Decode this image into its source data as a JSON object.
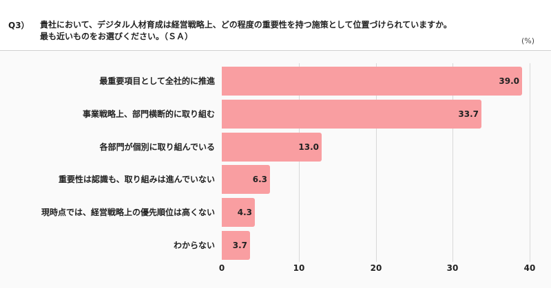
{
  "question": {
    "number": "Q3）",
    "line1": "貴社において、デジタル人材育成は経営戦略上、どの程度の重要性を持つ施策として位置づけられていますか。",
    "line2": "最も近いものをお選びください。（ＳＡ）",
    "unit": "(%)"
  },
  "colors": {
    "bar": "#f99ea1",
    "grid": "#d8d8d8",
    "background": "#fafafa"
  },
  "chart_data": {
    "type": "bar",
    "orientation": "horizontal",
    "title": "貴社において、デジタル人材育成は経営戦略上、どの程度の重要性を持つ施策として位置づけられていますか。最も近いものをお選びください。（ＳＡ）",
    "categories": [
      "最重要項目として全社的に推進",
      "事業戦略上、部門横断的に取り組む",
      "各部門が個別に取り組んでいる",
      "重要性は認識も、取り組みは進んでいない",
      "現時点では、経営戦略上の優先順位は高くない",
      "わからない"
    ],
    "values": [
      39.0,
      33.7,
      13.0,
      6.3,
      4.3,
      3.7
    ],
    "value_labels": [
      "39.0",
      "33.7",
      "13.0",
      "6.3",
      "4.3",
      "3.7"
    ],
    "xlabel": "",
    "ylabel": "",
    "unit": "(%)",
    "xlim": [
      0,
      40
    ],
    "xticks": [
      "0",
      "10",
      "20",
      "30",
      "40"
    ],
    "grid": true,
    "legend": null
  }
}
